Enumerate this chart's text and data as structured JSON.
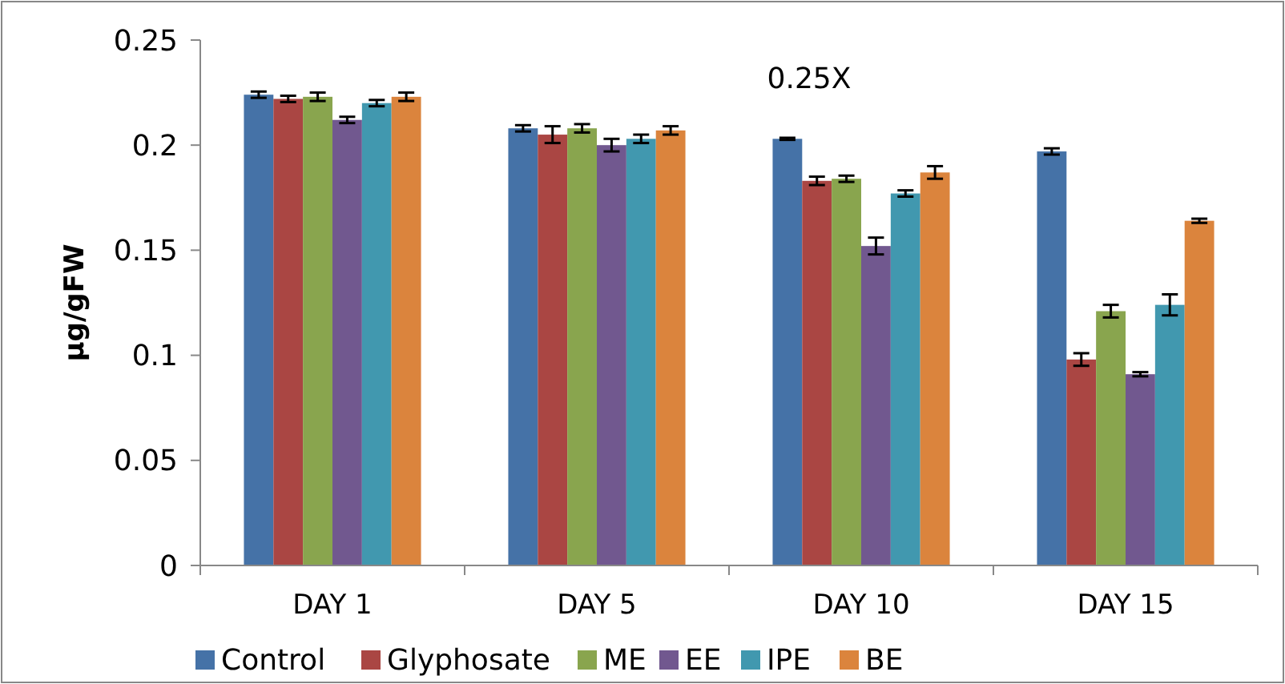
{
  "chart_data": {
    "type": "bar",
    "title": "0.25X",
    "ylabel": "µg/gFW",
    "categories": [
      "DAY 1",
      "DAY 5",
      "DAY 10",
      "DAY 15"
    ],
    "series": [
      {
        "name": "Control",
        "color": "#4572a7",
        "values": [
          0.224,
          0.208,
          0.203,
          0.197
        ],
        "errors": [
          0.0015,
          0.0015,
          0.0005,
          0.0015
        ]
      },
      {
        "name": "Glyphosate",
        "color": "#aa4643",
        "values": [
          0.222,
          0.205,
          0.183,
          0.098
        ],
        "errors": [
          0.0015,
          0.004,
          0.002,
          0.003
        ]
      },
      {
        "name": "ME",
        "color": "#89a54e",
        "values": [
          0.223,
          0.208,
          0.184,
          0.121
        ],
        "errors": [
          0.002,
          0.002,
          0.0015,
          0.003
        ]
      },
      {
        "name": "EE",
        "color": "#71588f",
        "values": [
          0.212,
          0.2,
          0.152,
          0.091
        ],
        "errors": [
          0.0015,
          0.003,
          0.004,
          0.001
        ]
      },
      {
        "name": "IPE",
        "color": "#4198af",
        "values": [
          0.22,
          0.203,
          0.177,
          0.124
        ],
        "errors": [
          0.0015,
          0.002,
          0.0015,
          0.005
        ]
      },
      {
        "name": "BE",
        "color": "#db843d",
        "values": [
          0.223,
          0.207,
          0.187,
          0.164
        ],
        "errors": [
          0.002,
          0.002,
          0.003,
          0.001
        ]
      }
    ],
    "ylim": [
      0,
      0.25
    ],
    "yticks": [
      0,
      0.05,
      0.1,
      0.15,
      0.2,
      0.25
    ],
    "grid": false,
    "legend": "bottom"
  }
}
